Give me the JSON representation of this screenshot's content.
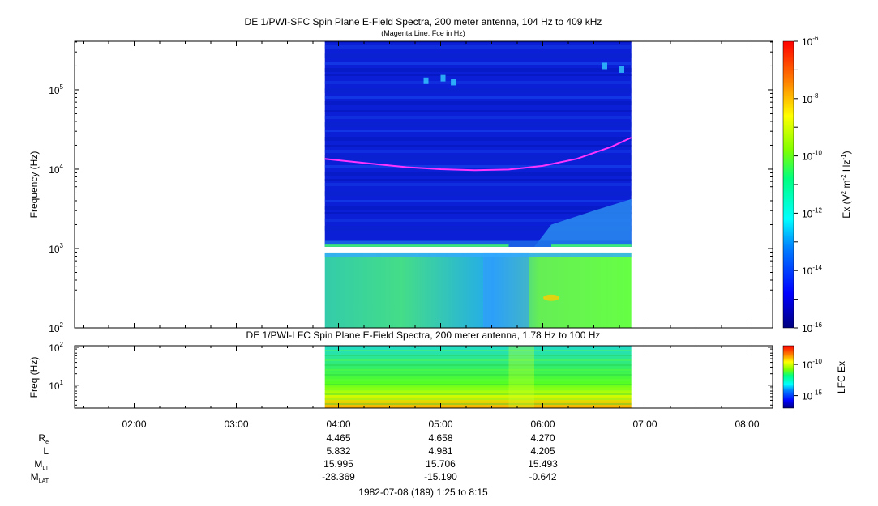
{
  "chart_data": [
    {
      "type": "heatmap",
      "title": "DE 1/PWI-SFC  Spin Plane E-Field Spectra, 200 meter antenna, 104 Hz to 409 kHz",
      "subtitle": "(Magenta Line: Fce in Hz)",
      "ylabel": "Frequency (Hz)",
      "yscale": "log",
      "ylim": [
        100,
        409000
      ],
      "yticks": [
        {
          "value": 100,
          "base": "10",
          "exp": "2"
        },
        {
          "value": 1000,
          "base": "10",
          "exp": "3"
        },
        {
          "value": 10000,
          "base": "10",
          "exp": "4"
        },
        {
          "value": 100000,
          "base": "10",
          "exp": "5"
        }
      ],
      "data_time_range": [
        "03:52",
        "06:52"
      ],
      "colorbar": {
        "label": "Ex (V² m⁻² Hz⁻¹)",
        "label_main": "Ex (V",
        "label_sup1": "2",
        "label_mid": " m",
        "label_sup2": "-2",
        "label_mid2": " Hz",
        "label_sup3": "-1",
        "label_end": ")",
        "scale": "log",
        "range": [
          1e-16,
          1e-06
        ],
        "ticks": [
          {
            "value": 1e-06,
            "base": "10",
            "exp": "-6"
          },
          {
            "value": 1e-08,
            "base": "10",
            "exp": "-8"
          },
          {
            "value": 1e-10,
            "base": "10",
            "exp": "-10"
          },
          {
            "value": 1e-12,
            "base": "10",
            "exp": "-12"
          },
          {
            "value": 1e-14,
            "base": "10",
            "exp": "-14"
          },
          {
            "value": 1e-16,
            "base": "10",
            "exp": "-16"
          }
        ]
      },
      "series": [
        {
          "type": "line",
          "color": "#ff33ff",
          "x": [
            "03:52",
            "04:15",
            "04:40",
            "05:00",
            "05:20",
            "05:40",
            "06:00",
            "06:20",
            "06:40",
            "06:52"
          ],
          "y": [
            13500,
            12000,
            10600,
            10000,
            9700,
            9900,
            11000,
            13500,
            19000,
            25000
          ]
        }
      ]
    },
    {
      "type": "heatmap",
      "title": "DE 1/PWI-LFC  Spin Plane E-Field Spectra, 200 meter antenna, 1.78 Hz to 100 Hz",
      "ylabel": "Freq (Hz)",
      "yscale": "log",
      "ylim": [
        2.5,
        110
      ],
      "yticks": [
        {
          "value": 10,
          "base": "10",
          "exp": "1"
        },
        {
          "value": 100,
          "base": "10",
          "exp": "2"
        }
      ],
      "data_time_range": [
        "03:52",
        "06:52"
      ],
      "colorbar": {
        "label": "LFC Ex",
        "scale": "log",
        "range": [
          1e-17,
          1e-07
        ],
        "ticks": [
          {
            "value": 1e-10,
            "base": "10",
            "exp": "-10"
          },
          {
            "value": 1e-15,
            "base": "10",
            "exp": "-15"
          }
        ]
      }
    }
  ],
  "xaxis": {
    "ticks": [
      "02:00",
      "03:00",
      "04:00",
      "05:00",
      "06:00",
      "07:00",
      "08:00"
    ],
    "range": [
      "01:25",
      "08:15"
    ]
  },
  "ephemeris": {
    "rows": [
      {
        "label": "R",
        "sub": "e",
        "values": [
          "4.465",
          "4.658",
          "4.270"
        ]
      },
      {
        "label": "L",
        "sub": "",
        "values": [
          "5.832",
          "4.981",
          "4.205"
        ]
      },
      {
        "label": "M",
        "sub": "LT",
        "values": [
          "15.995",
          "15.706",
          "15.493"
        ]
      },
      {
        "label": "M",
        "sub": "LAT",
        "values": [
          "-28.369",
          "-15.190",
          "-0.642"
        ]
      }
    ],
    "times": [
      "04:00",
      "05:00",
      "06:00"
    ]
  },
  "footer": "1982-07-08 (189) 1:25 to 8:15"
}
